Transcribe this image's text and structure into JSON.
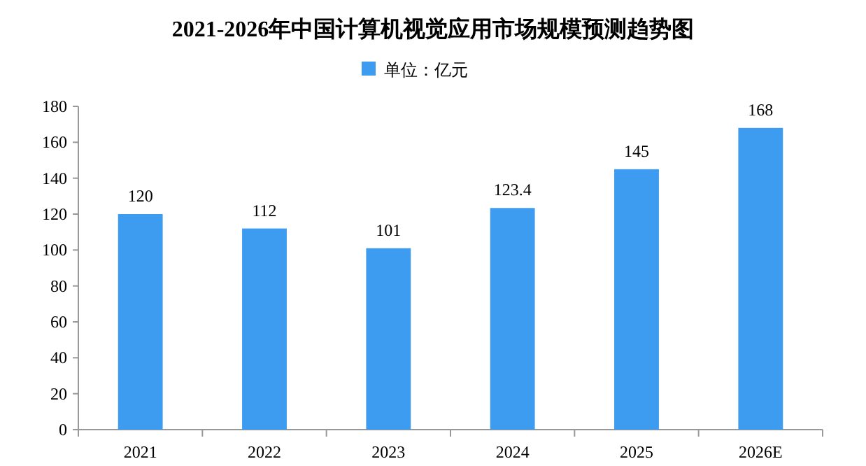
{
  "chart_data": {
    "type": "bar",
    "title": "2021-2026年中国计算机视觉应用市场规模预测趋势图",
    "categories": [
      "2021",
      "2022",
      "2023",
      "2024",
      "2025",
      "2026E"
    ],
    "series": [
      {
        "name": "单位：亿元",
        "color": "#3d9cf0",
        "values": [
          120,
          112,
          101,
          123.4,
          145,
          168
        ]
      }
    ],
    "ylim": [
      0,
      180
    ],
    "yticks": [
      0,
      20,
      40,
      60,
      80,
      100,
      120,
      140,
      160,
      180
    ],
    "data_labels": true,
    "legend": "top",
    "grid": false
  }
}
